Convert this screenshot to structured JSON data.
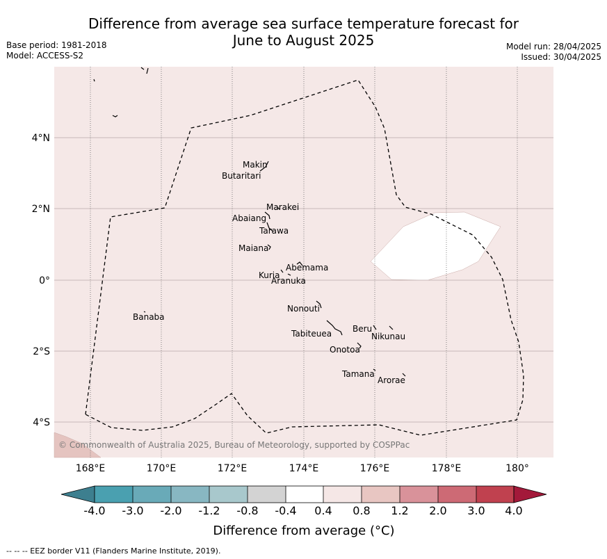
{
  "title_line1": "Difference from average sea surface temperature forecast for",
  "title_line2": "June to August 2025",
  "base_period": "Base period: 1981-2018",
  "model": "Model: ACCESS-S2",
  "model_run": "Model run: 28/04/2025",
  "issued": "Issued: 30/04/2025",
  "copyright": "© Commonwealth of Australia 2025, Bureau of Meteorology, supported by COSPPac",
  "lat_labels": [
    "4°N",
    "2°N",
    "0°",
    "2°S",
    "4°S"
  ],
  "lon_labels": [
    "168°E",
    "170°E",
    "172°E",
    "174°E",
    "176°E",
    "178°E",
    "180°"
  ],
  "places": [
    "Makin",
    "Butaritari",
    "Marakei",
    "Abaiang",
    "Tarawa",
    "Maiana",
    "Abemama",
    "Kuria",
    "Aranuka",
    "Nonouti",
    "Banaba",
    "Beru",
    "Nikunau",
    "Tabiteuea",
    "Onotoa",
    "Tamana",
    "Arorae"
  ],
  "colorbar": {
    "ticks": [
      "-4.0",
      "-3.0",
      "-2.0",
      "-1.2",
      "-0.8",
      "-0.4",
      "0.4",
      "0.8",
      "1.2",
      "2.0",
      "3.0",
      "4.0"
    ],
    "colors": [
      "#3d7f8f",
      "#4aa0b0",
      "#69aab8",
      "#88b7c2",
      "#a8c8cc",
      "#d3d3d3",
      "#ffffff",
      "#f5e7e6",
      "#e8c6c2",
      "#d9929a",
      "#cd6a75",
      "#c0414f",
      "#a3193a"
    ],
    "label": "Difference from average (°C)"
  },
  "map_colors": {
    "background": "#f5e8e7",
    "warm_corner": "#e5c4c0",
    "cool_patch": "#ffffff"
  },
  "footnote": "--  --  -- EEZ border V11 (Flanders Marine Institute, 2019)."
}
